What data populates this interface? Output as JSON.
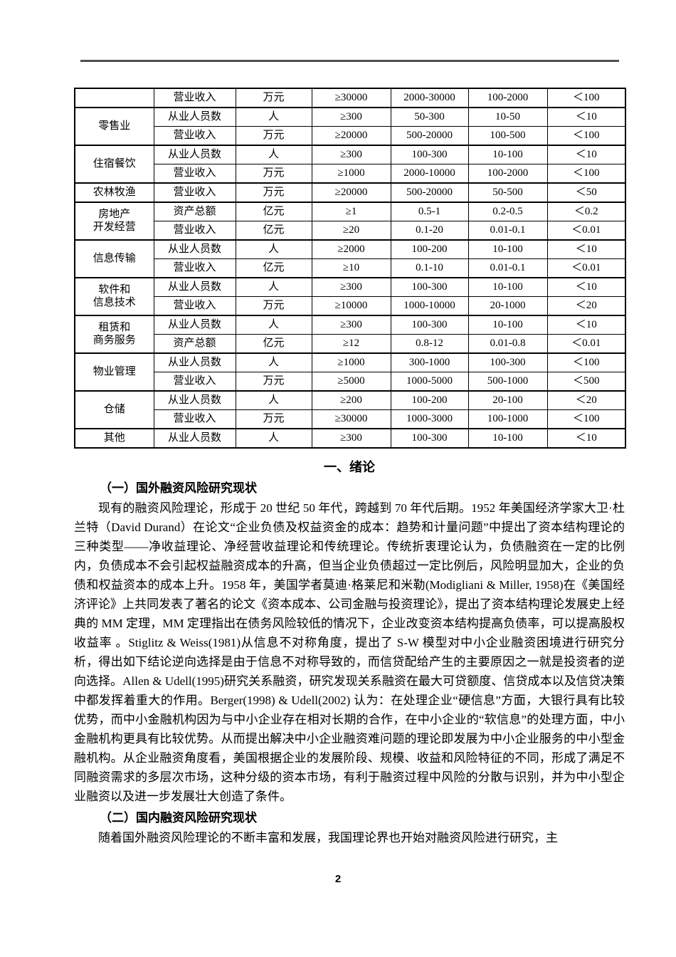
{
  "page": {
    "number": "2"
  },
  "table": {
    "groups": [
      {
        "name": "",
        "rows": [
          [
            "营业收入",
            "万元",
            "≥30000",
            "2000-30000",
            "100-2000",
            "＜100"
          ]
        ]
      },
      {
        "name": "零售业",
        "rows": [
          [
            "从业人员数",
            "人",
            "≥300",
            "50-300",
            "10-50",
            "＜10"
          ],
          [
            "营业收入",
            "万元",
            "≥20000",
            "500-20000",
            "100-500",
            "＜100"
          ]
        ]
      },
      {
        "name": "住宿餐饮",
        "rows": [
          [
            "从业人员数",
            "人",
            "≥300",
            "100-300",
            "10-100",
            "＜10"
          ],
          [
            "营业收入",
            "万元",
            "≥1000",
            "2000-10000",
            "100-2000",
            "＜100"
          ]
        ]
      },
      {
        "name": "农林牧渔",
        "rows": [
          [
            "营业收入",
            "万元",
            "≥20000",
            "500-20000",
            "50-500",
            "＜50"
          ]
        ]
      },
      {
        "name": "房地产\n开发经营",
        "rows": [
          [
            "资产总额",
            "亿元",
            "≥1",
            "0.5-1",
            "0.2-0.5",
            "＜0.2"
          ],
          [
            "营业收入",
            "亿元",
            "≥20",
            "0.1-20",
            "0.01-0.1",
            "＜0.01"
          ]
        ]
      },
      {
        "name": "信息传输",
        "rows": [
          [
            "从业人员数",
            "人",
            "≥2000",
            "100-200",
            "10-100",
            "＜10"
          ],
          [
            "营业收入",
            "亿元",
            "≥10",
            "0.1-10",
            "0.01-0.1",
            "＜0.01"
          ]
        ]
      },
      {
        "name": "软件和\n信息技术",
        "rows": [
          [
            "从业人员数",
            "人",
            "≥300",
            "100-300",
            "10-100",
            "＜10"
          ],
          [
            "营业收入",
            "万元",
            "≥10000",
            "1000-10000",
            "20-1000",
            "＜20"
          ]
        ]
      },
      {
        "name": "租赁和\n商务服务",
        "rows": [
          [
            "从业人员数",
            "人",
            "≥300",
            "100-300",
            "10-100",
            "＜10"
          ],
          [
            "资产总额",
            "亿元",
            "≥12",
            "0.8-12",
            "0.01-0.8",
            "＜0.01"
          ]
        ]
      },
      {
        "name": "物业管理",
        "rows": [
          [
            "从业人员数",
            "人",
            "≥1000",
            "300-1000",
            "100-300",
            "＜100"
          ],
          [
            "营业收入",
            "万元",
            "≥5000",
            "1000-5000",
            "500-1000",
            "＜500"
          ]
        ]
      },
      {
        "name": "仓储",
        "rows": [
          [
            "从业人员数",
            "人",
            "≥200",
            "100-200",
            "20-100",
            "＜20"
          ],
          [
            "营业收入",
            "万元",
            "≥30000",
            "1000-3000",
            "100-1000",
            "＜100"
          ]
        ]
      },
      {
        "name": "其他",
        "rows": [
          [
            "从业人员数",
            "人",
            "≥300",
            "100-300",
            "10-100",
            "＜10"
          ]
        ]
      }
    ]
  },
  "sections": {
    "main_heading": "一、绪论",
    "sub1_heading": "（一）国外融资风险研究现状",
    "para1": "现有的融资风险理论，形成于 20 世纪 50 年代，跨越到 70 年代后期。1952 年美国经济学家大卫·杜兰特（David Durand）在论文“企业负债及权益资金的成本：趋势和计量问题”中提出了资本结构理论的三种类型——净收益理论、净经营收益理论和传统理论。传统折衷理论认为，负债融资在一定的比例内，负债成本不会引起权益融资成本的升高，但当企业负债超过一定比例后，风险明显加大，企业的负债和权益资本的成本上升。1958 年，美国学者莫迪·格莱尼和米勒(Modigliani & Miller, 1958)在《美国经济评论》上共同发表了著名的论文《资本成本、公司金融与投资理论》，提出了资本结构理论发展史上经典的 MM 定理，MM 定理指出在债务风险较低的情况下，企业改变资本结构提高负债率，可以提高股权收益率 。Stiglitz & Weiss(1981)从信息不对称角度，提出了 S-W 模型对中小企业融资困境进行研究分析，得出如下结论逆向选择是由于信息不对称导致的，而信贷配给产生的主要原因之一就是投资者的逆向选择。Allen & Udell(1995)研究关系融资，研究发现关系融资在最大可贷额度、信贷成本以及信贷决策中都发挥着重大的作用。Berger(1998) & Udell(2002) 认为：在处理企业“硬信息”方面，大银行具有比较优势，而中小金融机构因为与中小企业存在相对长期的合作，在中小企业的“软信息”的处理方面，中小金融机构更具有比较优势。从而提出解决中小企业融资难问题的理论即发展为中小企业服务的中小型金融机构。从企业融资角度看，美国根据企业的发展阶段、规模、收益和风险特征的不同，形成了满足不同融资需求的多层次市场，这种分级的资本市场，有利于融资过程中风险的分散与识别，并为中小型企业融资以及进一步发展壮大创造了条件。",
    "sub2_heading": "（二）国内融资风险研究现状",
    "para2": "随着国外融资风险理论的不断丰富和发展，我国理论界也开始对融资风险进行研究，主"
  }
}
